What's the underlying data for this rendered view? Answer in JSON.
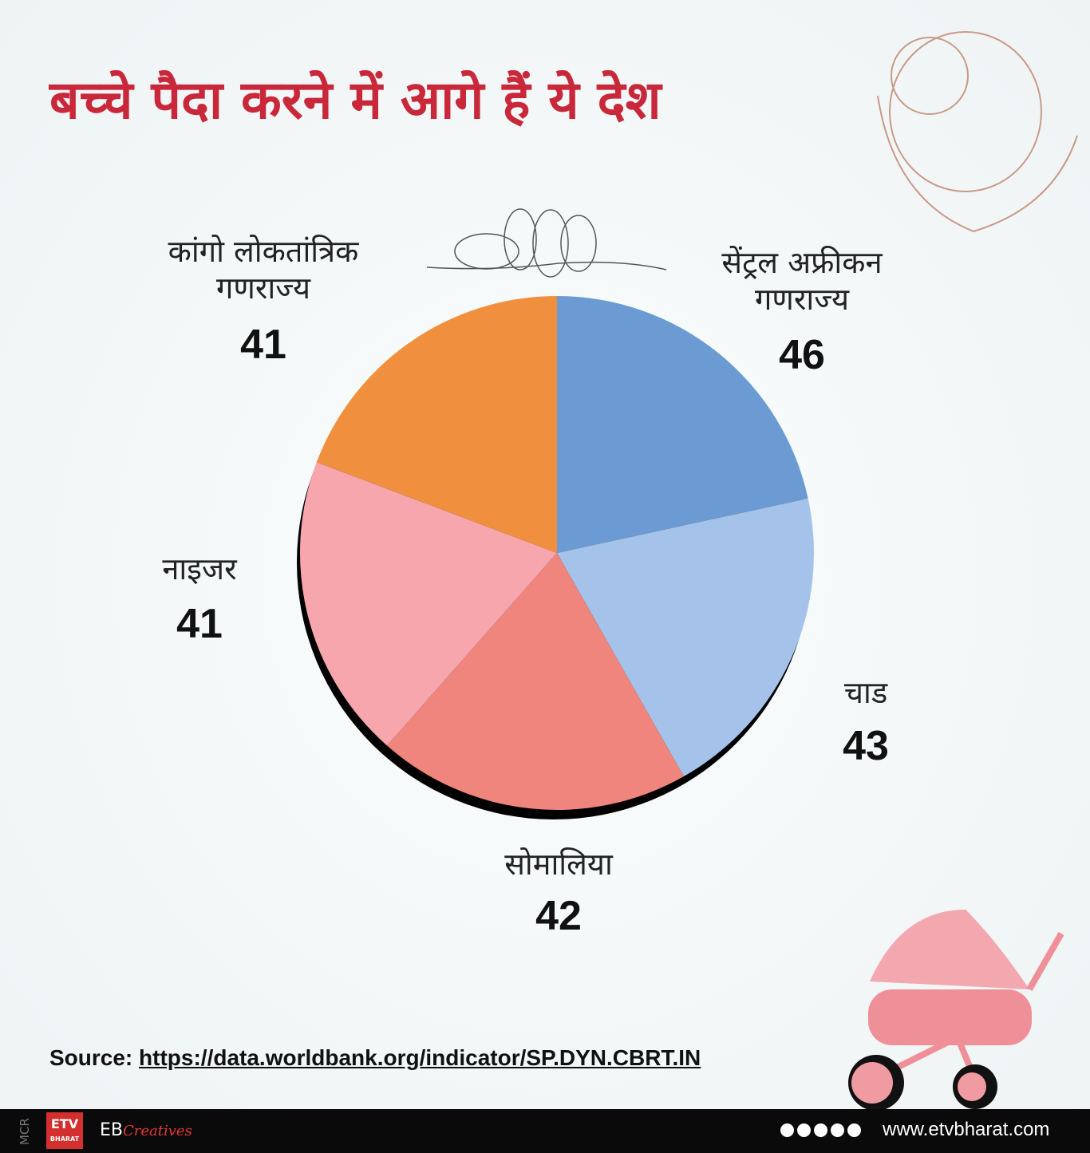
{
  "chart_data": {
    "type": "pie",
    "title": "बच्चे पैदा करने में आगे हैं ये देश",
    "categories": [
      "सेंट्रल अफ्रीकन गणराज्य",
      "चाड",
      "सोमालिया",
      "नाइजर",
      "कांगो लोकतांत्रिक गणराज्य"
    ],
    "values": [
      46,
      43,
      42,
      41,
      41
    ],
    "colors": [
      "#6b9bd2",
      "#a5c3ea",
      "#ef857d",
      "#f6a6ac",
      "#f0903e"
    ],
    "source_label": "Source:",
    "source_url": "https://data.worldbank.org/indicator/SP.DYN.CBRT.IN"
  },
  "footer": {
    "side": "MCR",
    "logo": "ETV",
    "logo_sub": "BHARAT",
    "brand": "EB",
    "brand_script": "Creatives",
    "website": "www.etvbharat.com"
  }
}
